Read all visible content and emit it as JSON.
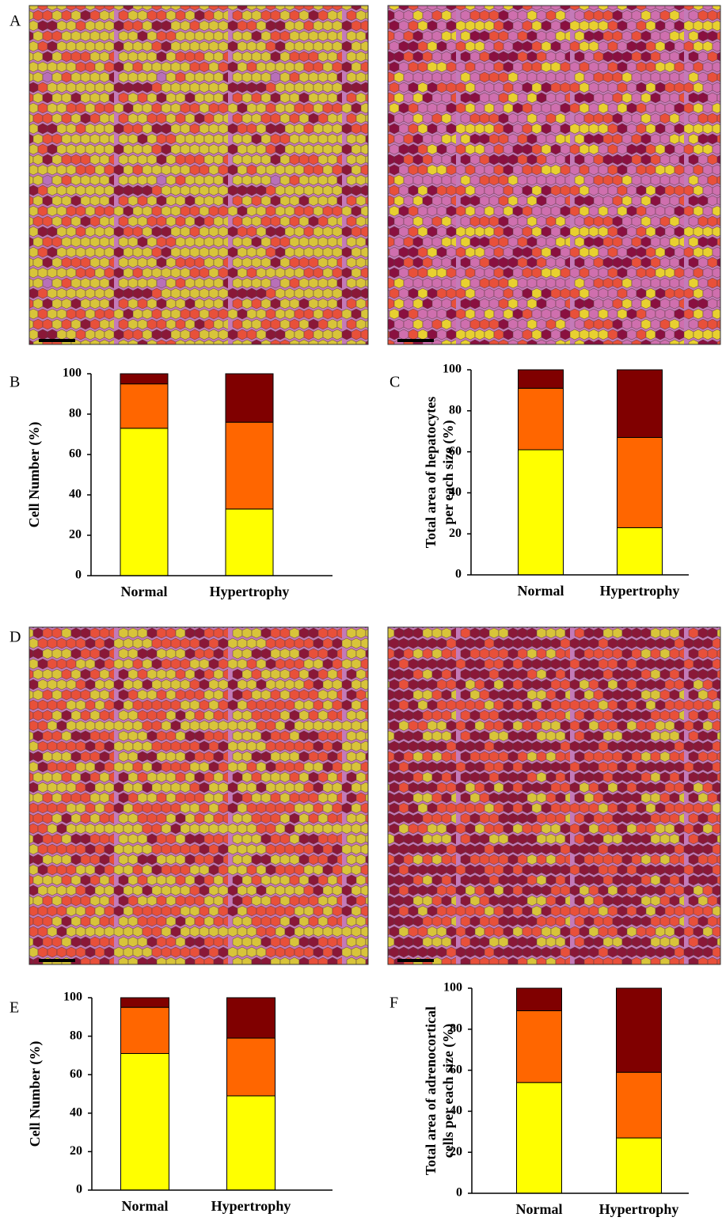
{
  "panel_labels": [
    "A",
    "B",
    "C",
    "D",
    "E",
    "F"
  ],
  "chart_data": [
    {
      "type": "bar",
      "stacked": true,
      "ylabel": [
        "Cell Number (%)"
      ],
      "categories": [
        "Normal",
        "Hypertrophy"
      ],
      "series": [
        {
          "color": "#ffff00",
          "values": [
            73,
            33
          ]
        },
        {
          "color": "#ff6600",
          "values": [
            22,
            43
          ]
        },
        {
          "color": "#800000",
          "values": [
            5,
            24
          ]
        }
      ],
      "ylim": [
        0,
        100
      ],
      "yticks": [
        0,
        20,
        40,
        60,
        80,
        100
      ]
    },
    {
      "type": "bar",
      "stacked": true,
      "ylabel": [
        "Total area of hepatocytes",
        "per each size (%)"
      ],
      "categories": [
        "Normal",
        "Hypertrophy"
      ],
      "series": [
        {
          "color": "#ffff00",
          "values": [
            61,
            23
          ]
        },
        {
          "color": "#ff6600",
          "values": [
            30,
            44
          ]
        },
        {
          "color": "#800000",
          "values": [
            9,
            33
          ]
        }
      ],
      "ylim": [
        0,
        100
      ],
      "yticks": [
        0,
        20,
        40,
        60,
        80,
        100
      ]
    },
    {
      "type": "bar",
      "stacked": true,
      "ylabel": [
        "Cell Number (%)"
      ],
      "categories": [
        "Normal",
        "Hypertrophy"
      ],
      "series": [
        {
          "color": "#ffff00",
          "values": [
            71,
            49
          ]
        },
        {
          "color": "#ff6600",
          "values": [
            24,
            30
          ]
        },
        {
          "color": "#800000",
          "values": [
            5,
            21
          ]
        }
      ],
      "ylim": [
        0,
        100
      ],
      "yticks": [
        0,
        20,
        40,
        60,
        80,
        100
      ]
    },
    {
      "type": "bar",
      "stacked": true,
      "ylabel": [
        "Total area of adrenocortical",
        "cells per each size (%)"
      ],
      "categories": [
        "Normal",
        "Hypertrophy"
      ],
      "series": [
        {
          "color": "#ffff00",
          "values": [
            54,
            27
          ]
        },
        {
          "color": "#ff6600",
          "values": [
            35,
            32
          ]
        },
        {
          "color": "#800000",
          "values": [
            11,
            41
          ]
        }
      ],
      "ylim": [
        0,
        100
      ],
      "yticks": [
        0,
        20,
        40,
        60,
        80,
        100
      ]
    }
  ]
}
